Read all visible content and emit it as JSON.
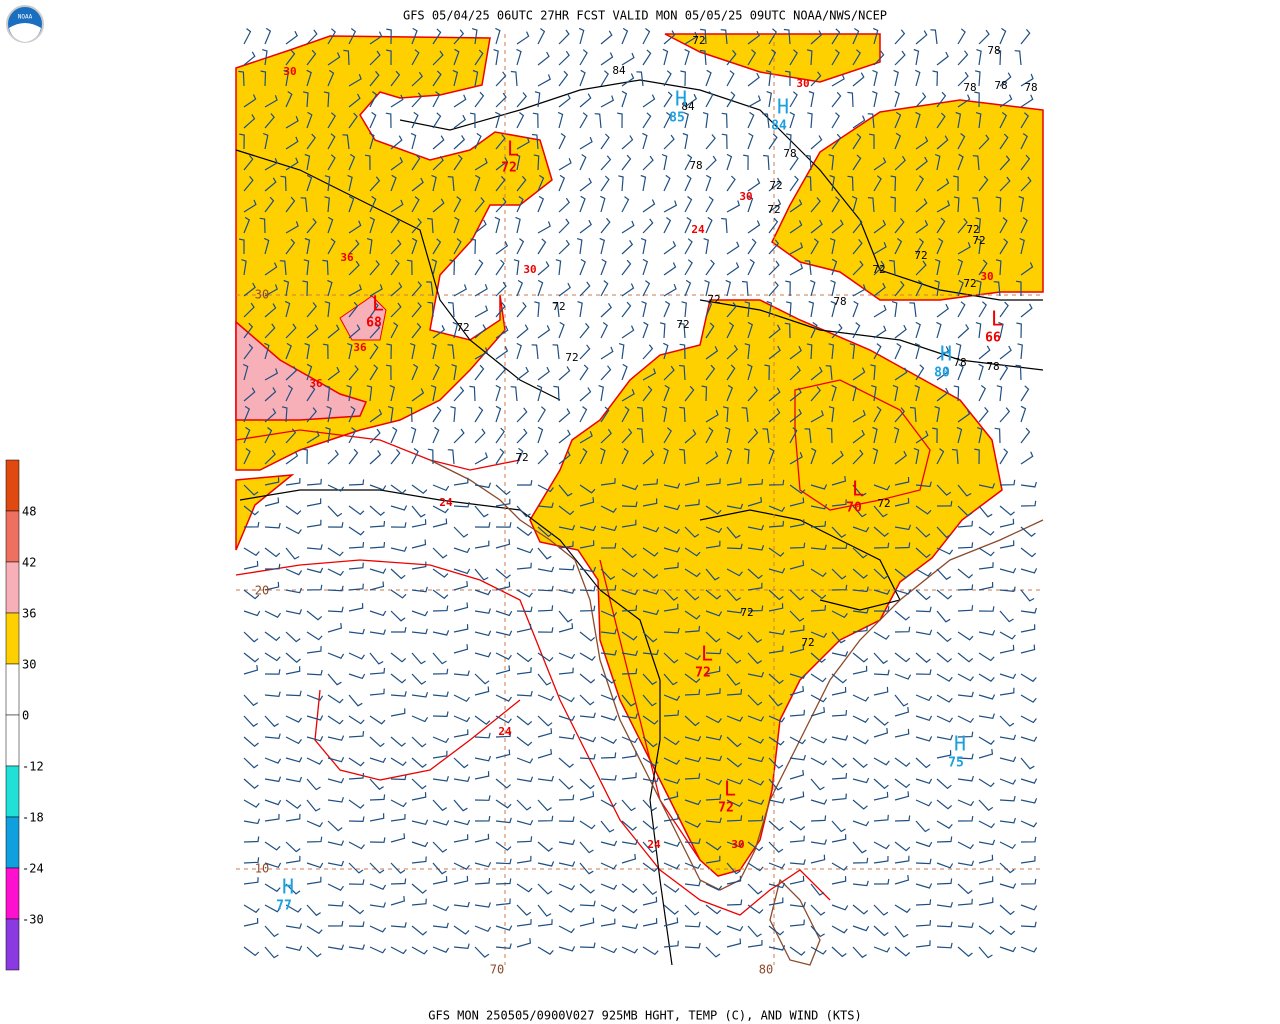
{
  "header": {
    "title": "GFS 05/04/25 06UTC 27HR FCST VALID MON 05/05/25 09UTC NOAA/NWS/NCEP",
    "logo": "NOAA"
  },
  "footer": {
    "caption": "GFS MON 250505/0900V027 925MB HGHT, TEMP (C), AND WIND (KTS)"
  },
  "colorbar": {
    "labels": [
      "48",
      "42",
      "36",
      "30",
      "0",
      "-12",
      "-18",
      "-24",
      "-30"
    ]
  },
  "map": {
    "grid_labels": [
      "30",
      "20",
      "10",
      "70",
      "80"
    ],
    "centers": [
      {
        "symbol": "L",
        "value": "72"
      },
      {
        "symbol": "L",
        "value": "68"
      },
      {
        "symbol": "H",
        "value": "85"
      },
      {
        "symbol": "H",
        "value": "84"
      },
      {
        "symbol": "L",
        "value": "66"
      },
      {
        "symbol": "H",
        "value": "80"
      },
      {
        "symbol": "L",
        "value": "70"
      },
      {
        "symbol": "L",
        "value": "72"
      },
      {
        "symbol": "L",
        "value": "72"
      },
      {
        "symbol": "H",
        "value": "75"
      },
      {
        "symbol": "H",
        "value": "77"
      }
    ],
    "temp_labels": [
      "30",
      "36",
      "36",
      "36",
      "30",
      "24",
      "30",
      "30",
      "24",
      "24",
      "24",
      "30",
      "30"
    ],
    "height_labels": [
      "84",
      "78",
      "78",
      "78",
      "78",
      "78",
      "78",
      "72",
      "72",
      "72",
      "72",
      "72",
      "72",
      "72",
      "72",
      "72",
      "72",
      "72",
      "72",
      "72",
      "72",
      "72",
      "72",
      "78",
      "78",
      "78",
      "72",
      "84"
    ]
  }
}
